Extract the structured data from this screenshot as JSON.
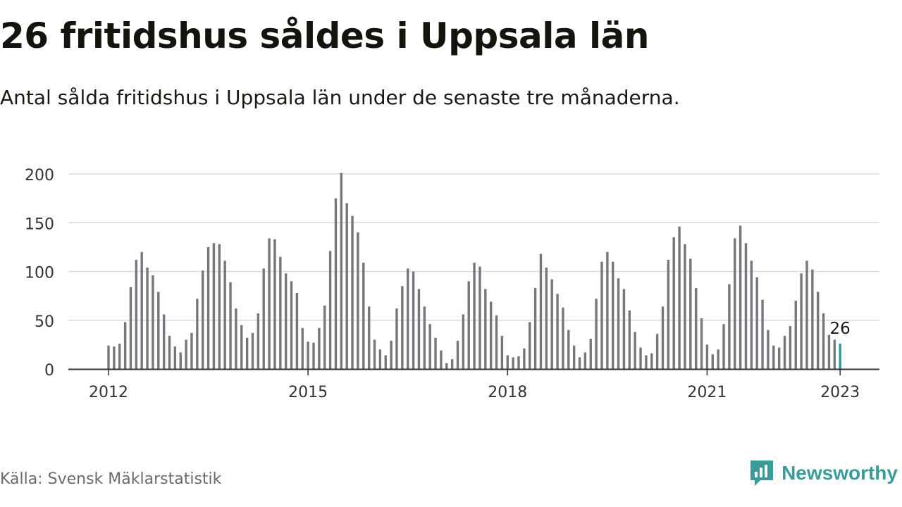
{
  "title": "26 fritidshus såldes i Uppsala län",
  "subtitle": "Antal sålda fritidshus i Uppsala län under de senaste tre månaderna.",
  "source": "Källa: Svensk Mäklarstatistik",
  "brand": "Newsworthy",
  "colors": {
    "bar": "#77777b",
    "highlight": "#1aa39a",
    "grid": "#d9d9d9",
    "axis": "#333333",
    "brand": "#3a9c98"
  },
  "chart_data": {
    "type": "bar",
    "title": "26 fritidshus såldes i Uppsala län",
    "xlabel": "",
    "ylabel": "",
    "ylim": [
      0,
      200
    ],
    "yticks": [
      0,
      50,
      100,
      150,
      200
    ],
    "xticks": [
      "2012",
      "2015",
      "2018",
      "2021",
      "2023"
    ],
    "x_start": "2012-01",
    "grid": true,
    "highlight_last": true,
    "last_label": "26",
    "values": [
      24,
      23,
      26,
      48,
      84,
      112,
      120,
      104,
      96,
      79,
      56,
      34,
      23,
      17,
      30,
      37,
      72,
      101,
      125,
      129,
      128,
      111,
      89,
      62,
      45,
      32,
      37,
      57,
      103,
      134,
      133,
      115,
      98,
      90,
      78,
      42,
      28,
      27,
      42,
      65,
      121,
      175,
      201,
      170,
      157,
      140,
      109,
      64,
      30,
      20,
      14,
      29,
      62,
      85,
      103,
      100,
      82,
      64,
      46,
      32,
      19,
      6,
      10,
      29,
      56,
      90,
      109,
      105,
      82,
      69,
      55,
      34,
      14,
      12,
      13,
      21,
      48,
      83,
      118,
      104,
      92,
      77,
      63,
      40,
      24,
      12,
      17,
      31,
      72,
      110,
      120,
      110,
      93,
      82,
      60,
      38,
      22,
      14,
      16,
      36,
      64,
      112,
      135,
      146,
      128,
      113,
      83,
      52,
      25,
      15,
      20,
      46,
      87,
      134,
      147,
      129,
      111,
      94,
      71,
      40,
      24,
      22,
      34,
      44,
      70,
      98,
      111,
      102,
      79,
      57,
      35,
      30,
      26
    ]
  }
}
